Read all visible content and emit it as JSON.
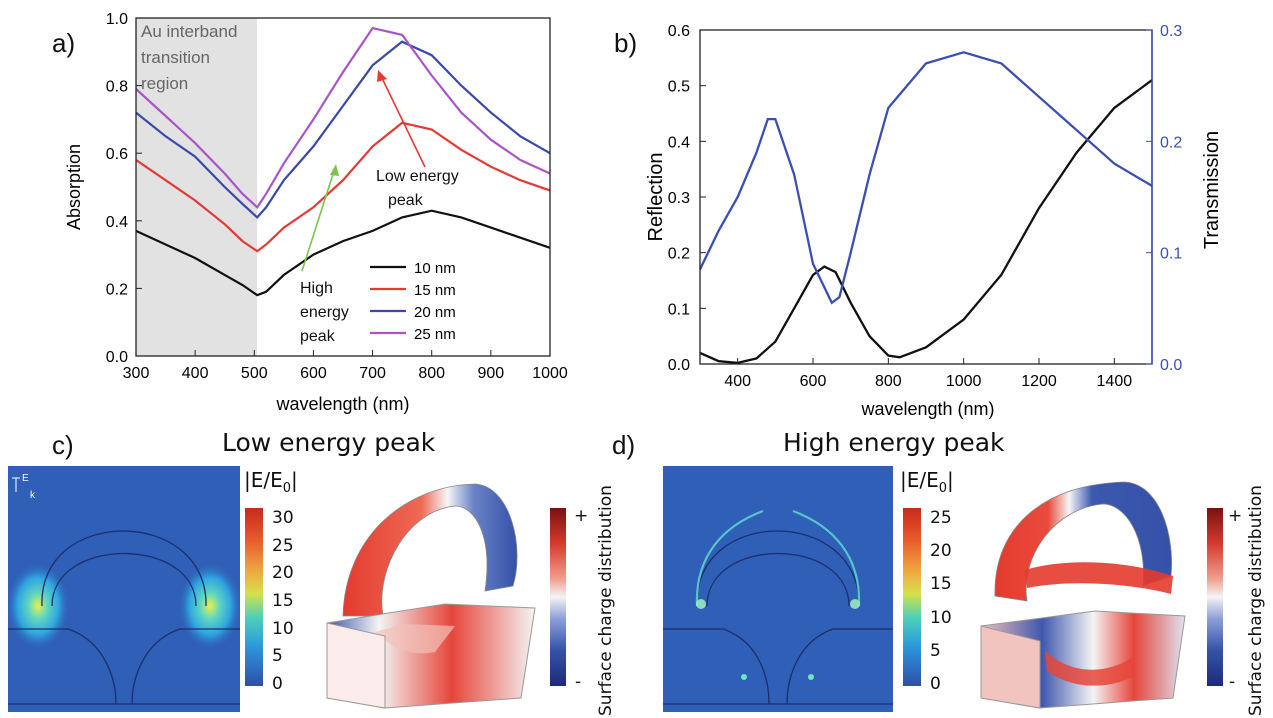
{
  "panels": {
    "a": "a)",
    "b": "b)",
    "c": "c)",
    "d": "d)"
  },
  "chart_data": [
    {
      "type": "line",
      "panel": "a",
      "xlabel": "wavelength (nm)",
      "ylabel": "Absorption",
      "xlim": [
        300,
        1000
      ],
      "ylim": [
        0,
        1
      ],
      "xticks": [
        "300",
        "400",
        "500",
        "600",
        "700",
        "800",
        "900",
        "1000"
      ],
      "yticks": [
        "0.0",
        "0.2",
        "0.4",
        "0.6",
        "0.8",
        "1.0"
      ],
      "shaded_region": {
        "x": [
          300,
          505
        ],
        "label_lines": [
          "Au interband",
          "transition",
          "region"
        ]
      },
      "annotations": [
        {
          "lines": [
            "Low energy",
            "peak"
          ],
          "arrow_color": "#e53935"
        },
        {
          "lines": [
            "High",
            "energy",
            "peak"
          ],
          "arrow_color": "#7cc34a"
        }
      ],
      "legend": "bottom-right",
      "x": [
        300,
        350,
        400,
        450,
        480,
        505,
        520,
        550,
        600,
        650,
        700,
        750,
        800,
        850,
        900,
        950,
        1000
      ],
      "series": [
        {
          "name": "10 nm",
          "color": "#111111",
          "values": [
            0.37,
            0.33,
            0.29,
            0.24,
            0.21,
            0.18,
            0.19,
            0.24,
            0.3,
            0.34,
            0.37,
            0.41,
            0.43,
            0.41,
            0.38,
            0.35,
            0.32
          ]
        },
        {
          "name": "15 nm",
          "color": "#e53935",
          "values": [
            0.58,
            0.52,
            0.46,
            0.39,
            0.34,
            0.31,
            0.33,
            0.38,
            0.44,
            0.52,
            0.62,
            0.69,
            0.67,
            0.61,
            0.56,
            0.52,
            0.49
          ]
        },
        {
          "name": "20 nm",
          "color": "#3949ab",
          "values": [
            0.72,
            0.65,
            0.59,
            0.5,
            0.45,
            0.41,
            0.44,
            0.52,
            0.62,
            0.74,
            0.86,
            0.93,
            0.89,
            0.8,
            0.72,
            0.65,
            0.6
          ]
        },
        {
          "name": "25 nm",
          "color": "#a855c8",
          "values": [
            0.79,
            0.71,
            0.63,
            0.54,
            0.48,
            0.44,
            0.48,
            0.57,
            0.7,
            0.84,
            0.97,
            0.95,
            0.83,
            0.72,
            0.64,
            0.58,
            0.54
          ]
        }
      ]
    },
    {
      "type": "line",
      "panel": "b",
      "xlabel": "wavelength (nm)",
      "ylabel": "Reflection",
      "y2label": "Transmission",
      "xlim": [
        300,
        1500
      ],
      "ylim": [
        0,
        0.6
      ],
      "y2lim": [
        0,
        0.3
      ],
      "xticks": [
        "400",
        "600",
        "800",
        "1000",
        "1200",
        "1400"
      ],
      "yticks": [
        "0.0",
        "0.1",
        "0.2",
        "0.3",
        "0.4",
        "0.5",
        "0.6"
      ],
      "y2ticks": [
        "0.0",
        "0.1",
        "0.2",
        "0.3"
      ],
      "series": [
        {
          "name": "Reflection",
          "axis": "left",
          "color": "#111111",
          "x": [
            300,
            350,
            400,
            450,
            500,
            550,
            600,
            630,
            660,
            700,
            750,
            800,
            830,
            900,
            1000,
            1100,
            1200,
            1300,
            1400,
            1500
          ],
          "values": [
            0.02,
            0.005,
            0.002,
            0.01,
            0.04,
            0.1,
            0.16,
            0.175,
            0.165,
            0.11,
            0.05,
            0.015,
            0.012,
            0.03,
            0.08,
            0.16,
            0.28,
            0.38,
            0.46,
            0.51
          ]
        },
        {
          "name": "Transmission",
          "axis": "right",
          "color": "#3b4fb3",
          "x": [
            300,
            350,
            400,
            450,
            480,
            500,
            550,
            600,
            650,
            670,
            700,
            750,
            800,
            900,
            1000,
            1100,
            1200,
            1300,
            1400,
            1500
          ],
          "values": [
            0.085,
            0.12,
            0.15,
            0.19,
            0.22,
            0.22,
            0.17,
            0.09,
            0.055,
            0.06,
            0.1,
            0.17,
            0.23,
            0.27,
            0.28,
            0.27,
            0.24,
            0.21,
            0.18,
            0.16
          ]
        }
      ]
    }
  ],
  "panel_c": {
    "title": "Low energy peak",
    "field_colorbar_label": "|E/E0|",
    "field_ticks": [
      "30",
      "25",
      "20",
      "15",
      "10",
      "5",
      "0"
    ],
    "axis_markers": {
      "e": "E",
      "k": "k"
    },
    "charge_label": "Surface charge distribution",
    "charge_plus": "+",
    "charge_minus": "-"
  },
  "panel_d": {
    "title": "High energy peak",
    "field_colorbar_label": "|E/E0|",
    "field_ticks": [
      "25",
      "20",
      "15",
      "10",
      "5",
      "0"
    ],
    "charge_label": "Surface charge distribution",
    "charge_plus": "+",
    "charge_minus": "-"
  }
}
